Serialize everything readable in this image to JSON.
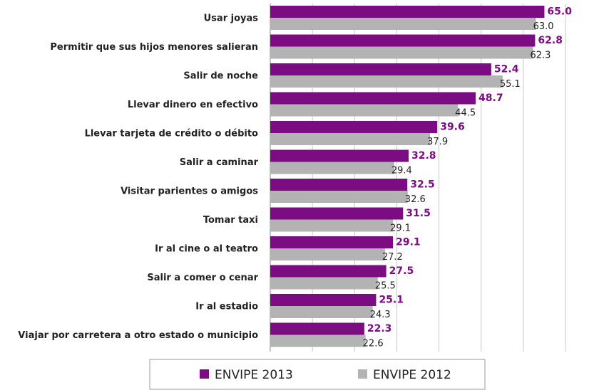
{
  "chart_data": {
    "type": "hbar",
    "categories": [
      "Usar joyas",
      "Permitir que sus hijos menores salieran",
      "Salir de noche",
      "Llevar dinero en efectivo",
      "Llevar tarjeta de crédito o débito",
      "Salir a caminar",
      "Visitar parientes o amigos",
      "Tomar taxi",
      "Ir al cine o al teatro",
      "Salir a comer o cenar",
      "Ir al estadio",
      "Viajar por carretera a otro estado o municipio"
    ],
    "series": [
      {
        "name": "ENVIPE 2013",
        "color": "#7b0c82",
        "values": [
          65.0,
          62.8,
          52.4,
          48.7,
          39.6,
          32.8,
          32.5,
          31.5,
          29.1,
          27.5,
          25.1,
          22.3
        ],
        "value_labels": [
          "65.0",
          "62.8",
          "52.4",
          "48.7",
          "39.6",
          "32.8",
          "32.5",
          "31.5",
          "29.1",
          "27.5",
          "25.1",
          "22.3"
        ]
      },
      {
        "name": "ENVIPE 2012",
        "color": "#b3b3b3",
        "values": [
          63.0,
          62.3,
          55.1,
          44.5,
          37.9,
          29.4,
          32.6,
          29.1,
          27.2,
          25.5,
          24.3,
          22.6
        ],
        "value_labels": [
          "63.0",
          "62.3",
          "55.1",
          "44.5",
          "37.9",
          "29.4",
          "32.6",
          "29.1",
          "27.2",
          "25.5",
          "24.3",
          "22.6"
        ]
      }
    ],
    "xlim": [
      0,
      70
    ],
    "xticks": [
      10,
      20,
      30,
      40,
      50,
      60,
      70
    ],
    "grid": true
  }
}
